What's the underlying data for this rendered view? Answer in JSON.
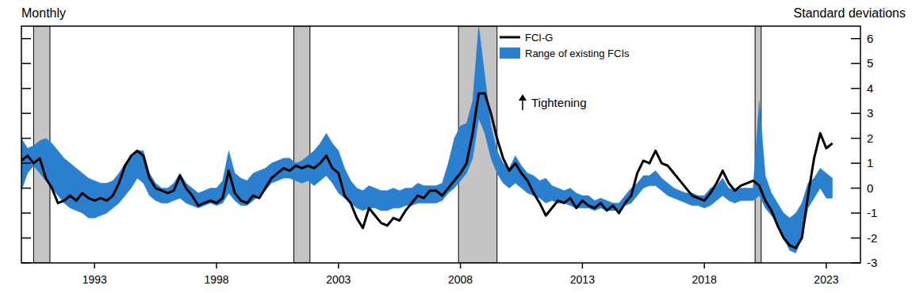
{
  "chart_data": {
    "type": "line",
    "note": "Monthly",
    "y_label": "Standard deviations",
    "annotation": "Tightening",
    "legend": "top",
    "grid": false,
    "xlim": [
      1990,
      2024.4
    ],
    "ylim": [
      -3,
      6.5
    ],
    "xticks": [
      1993,
      1998,
      2003,
      2008,
      2013,
      2018,
      2023
    ],
    "yticks": [
      -3,
      -2,
      -1,
      0,
      1,
      2,
      3,
      4,
      5,
      6
    ],
    "recessions": [
      {
        "start": 1990.5,
        "end": 1991.17
      },
      {
        "start": 2001.17,
        "end": 2001.83
      },
      {
        "start": 2007.92,
        "end": 2009.5
      },
      {
        "start": 2020.08,
        "end": 2020.33
      }
    ],
    "x": [
      1990,
      1990.25,
      1990.5,
      1990.75,
      1991,
      1991.25,
      1991.5,
      1991.75,
      1992,
      1992.25,
      1992.5,
      1992.75,
      1993,
      1993.25,
      1993.5,
      1993.75,
      1994,
      1994.25,
      1994.5,
      1994.75,
      1995,
      1995.25,
      1995.5,
      1995.75,
      1996,
      1996.25,
      1996.5,
      1996.75,
      1997,
      1997.25,
      1997.5,
      1997.75,
      1998,
      1998.25,
      1998.5,
      1998.75,
      1999,
      1999.25,
      1999.5,
      1999.75,
      2000,
      2000.25,
      2000.5,
      2000.75,
      2001,
      2001.25,
      2001.5,
      2001.75,
      2002,
      2002.25,
      2002.5,
      2002.75,
      2003,
      2003.25,
      2003.5,
      2003.75,
      2004,
      2004.25,
      2004.5,
      2004.75,
      2005,
      2005.25,
      2005.5,
      2005.75,
      2006,
      2006.25,
      2006.5,
      2006.75,
      2007,
      2007.25,
      2007.5,
      2007.75,
      2008,
      2008.25,
      2008.5,
      2008.75,
      2009,
      2009.25,
      2009.5,
      2009.75,
      2010,
      2010.25,
      2010.5,
      2010.75,
      2011,
      2011.25,
      2011.5,
      2011.75,
      2012,
      2012.25,
      2012.5,
      2012.75,
      2013,
      2013.25,
      2013.5,
      2013.75,
      2014,
      2014.25,
      2014.5,
      2014.75,
      2015,
      2015.25,
      2015.5,
      2015.75,
      2016,
      2016.25,
      2016.5,
      2016.75,
      2017,
      2017.25,
      2017.5,
      2017.75,
      2018,
      2018.25,
      2018.5,
      2018.75,
      2019,
      2019.25,
      2019.5,
      2019.75,
      2020,
      2020.25,
      2020.5,
      2020.75,
      2021,
      2021.25,
      2021.5,
      2021.75,
      2022,
      2022.25,
      2022.5,
      2022.75,
      2023,
      2023.25
    ],
    "series": [
      {
        "name": "FCI-G",
        "type": "line",
        "color": "#000000",
        "values": [
          1.1,
          1.3,
          1.0,
          1.2,
          0.4,
          0.0,
          -0.6,
          -0.5,
          -0.3,
          -0.5,
          -0.2,
          -0.4,
          -0.5,
          -0.4,
          -0.5,
          -0.3,
          0.2,
          0.9,
          1.3,
          1.5,
          1.3,
          0.4,
          0.0,
          -0.1,
          -0.2,
          -0.1,
          0.5,
          0.0,
          -0.3,
          -0.7,
          -0.6,
          -0.5,
          -0.6,
          -0.4,
          0.7,
          -0.2,
          -0.5,
          -0.6,
          -0.3,
          -0.4,
          0.0,
          0.4,
          0.6,
          0.8,
          0.7,
          0.9,
          0.8,
          0.9,
          0.8,
          1.0,
          1.3,
          0.8,
          0.6,
          -0.3,
          -0.6,
          -1.2,
          -1.6,
          -0.8,
          -1.1,
          -1.4,
          -1.5,
          -1.2,
          -1.3,
          -0.9,
          -0.6,
          -0.3,
          -0.4,
          -0.1,
          -0.1,
          -0.3,
          0.0,
          0.3,
          0.6,
          1.0,
          2.2,
          3.8,
          3.8,
          3.0,
          2.0,
          1.2,
          0.7,
          1.0,
          0.6,
          0.3,
          -0.2,
          -0.6,
          -1.1,
          -0.8,
          -0.5,
          -0.6,
          -0.4,
          -0.8,
          -0.5,
          -0.7,
          -0.8,
          -0.6,
          -0.9,
          -0.7,
          -1.0,
          -0.6,
          -0.3,
          0.6,
          1.1,
          1.0,
          1.5,
          1.0,
          0.9,
          0.6,
          0.3,
          0.0,
          -0.3,
          -0.4,
          -0.5,
          -0.2,
          0.2,
          0.7,
          0.2,
          -0.1,
          0.1,
          0.2,
          0.3,
          0.1,
          -0.5,
          -0.9,
          -1.5,
          -2.0,
          -2.3,
          -2.4,
          -2.0,
          -0.3,
          1.2,
          2.2,
          1.6,
          1.8
        ]
      },
      {
        "name": "Range of existing FCIs",
        "type": "area",
        "color": "#2a7fcf",
        "low": [
          -0.1,
          0.6,
          0.9,
          0.6,
          0.3,
          0.0,
          -0.3,
          -0.6,
          -0.8,
          -0.9,
          -1.0,
          -1.2,
          -1.2,
          -1.1,
          -1.0,
          -0.8,
          -0.6,
          -0.3,
          0.0,
          0.4,
          0.2,
          -0.3,
          -0.5,
          -0.6,
          -0.6,
          -0.5,
          -0.4,
          -0.6,
          -0.7,
          -0.8,
          -0.7,
          -0.6,
          -0.7,
          -0.6,
          -0.2,
          -0.5,
          -0.7,
          -0.7,
          -0.5,
          -0.3,
          -0.1,
          0.2,
          0.3,
          0.4,
          0.4,
          0.3,
          0.2,
          0.3,
          0.1,
          0.3,
          0.5,
          0.2,
          -0.2,
          -0.4,
          -0.6,
          -0.8,
          -0.9,
          -0.8,
          -0.8,
          -0.9,
          -0.9,
          -0.8,
          -0.8,
          -0.7,
          -0.7,
          -0.6,
          -0.6,
          -0.6,
          -0.6,
          -0.5,
          -0.2,
          0.0,
          0.3,
          0.6,
          1.2,
          2.8,
          2.2,
          1.2,
          0.6,
          0.2,
          0.0,
          0.2,
          0.0,
          -0.2,
          -0.3,
          -0.4,
          -0.6,
          -0.5,
          -0.6,
          -0.6,
          -0.7,
          -0.8,
          -0.8,
          -0.8,
          -0.9,
          -0.8,
          -0.9,
          -0.9,
          -0.9,
          -0.7,
          -0.6,
          -0.3,
          0.0,
          0.1,
          0.1,
          -0.1,
          -0.3,
          -0.4,
          -0.5,
          -0.6,
          -0.7,
          -0.7,
          -0.8,
          -0.7,
          -0.5,
          -0.3,
          -0.5,
          -0.6,
          -0.5,
          -0.5,
          -0.5,
          -0.3,
          -0.8,
          -1.1,
          -1.4,
          -2.0,
          -2.5,
          -2.6,
          -2.0,
          -0.8,
          -0.4,
          0.0,
          -0.4,
          -0.4
        ],
        "high": [
          2.0,
          1.6,
          1.7,
          1.9,
          2.0,
          1.8,
          1.5,
          1.2,
          1.0,
          0.8,
          0.6,
          0.4,
          0.3,
          0.2,
          0.2,
          0.3,
          0.6,
          1.0,
          1.3,
          1.5,
          1.5,
          0.6,
          0.2,
          0.0,
          0.0,
          0.2,
          0.6,
          0.2,
          0.0,
          -0.2,
          -0.1,
          0.0,
          0.0,
          0.3,
          1.5,
          0.6,
          0.4,
          0.3,
          0.6,
          0.7,
          0.8,
          1.0,
          1.1,
          1.2,
          1.2,
          1.0,
          1.1,
          1.3,
          1.5,
          1.8,
          2.2,
          1.8,
          1.5,
          0.8,
          0.3,
          0.0,
          -0.1,
          0.1,
          0.0,
          -0.1,
          -0.1,
          0.0,
          -0.1,
          0.0,
          0.0,
          0.2,
          0.1,
          0.1,
          0.1,
          0.2,
          1.0,
          2.0,
          2.5,
          2.6,
          3.5,
          6.5,
          4.5,
          2.5,
          1.5,
          1.0,
          0.8,
          1.3,
          0.9,
          0.6,
          0.5,
          0.3,
          0.4,
          0.1,
          0.0,
          -0.1,
          0.0,
          -0.2,
          -0.3,
          -0.3,
          -0.5,
          -0.4,
          -0.5,
          -0.6,
          -0.6,
          -0.3,
          0.0,
          0.2,
          0.5,
          0.5,
          0.7,
          0.4,
          0.2,
          0.0,
          -0.1,
          -0.2,
          -0.2,
          -0.3,
          -0.3,
          0.0,
          0.1,
          0.4,
          0.0,
          -0.1,
          0.0,
          0.0,
          0.0,
          3.5,
          0.5,
          -0.2,
          -0.6,
          -1.0,
          -1.2,
          -1.0,
          -0.6,
          0.2,
          0.4,
          0.8,
          0.6,
          0.4
        ]
      }
    ]
  }
}
